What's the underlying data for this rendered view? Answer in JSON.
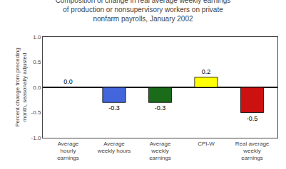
{
  "chart_data": {
    "type": "bar",
    "title": "Composition of change in real average weekly earnings\nof production or nonsupervisory workers on private\nnonfarm payrolls, January 2002",
    "categories": [
      "Average\nhourly\nearnings",
      "Average\nweekly hours",
      "Average\nweekly\nearnings",
      "CPI-W",
      "Real average\nweekly\nearnings"
    ],
    "values": [
      0.0,
      -0.3,
      -0.3,
      0.2,
      -0.5
    ],
    "value_labels": [
      "0.0",
      "-0.3",
      "-0.3",
      "0.2",
      "-0.5"
    ],
    "data_labels": true,
    "colors": [
      "#4466dd",
      "#4466dd",
      "#1a6b1a",
      "#ffff00",
      "#cc1111"
    ],
    "ylabel": "Percent change from preceding\nmonth, seasonally adjusted",
    "ylim": [
      -1.0,
      1.0
    ],
    "yticks": [
      {
        "value": -1.0,
        "label": "-1.0"
      },
      -0.5,
      {
        "value": 0.0,
        "label": "0.0"
      },
      0.5,
      {
        "value": 1.0,
        "label": "1.0"
      }
    ],
    "grid": false
  }
}
